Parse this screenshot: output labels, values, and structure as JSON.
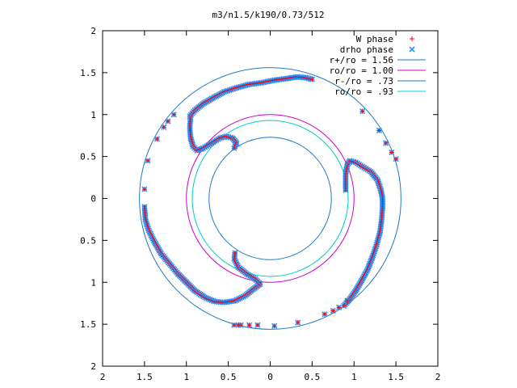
{
  "chart_data": {
    "type": "scatter",
    "title": "m3/n1.5/k190/0.73/512",
    "xlabel": "",
    "ylabel": "",
    "xlim": [
      -2,
      2
    ],
    "ylim": [
      -2,
      2
    ],
    "x_ticks": [
      -2,
      -1.5,
      -1,
      -0.5,
      0,
      0.5,
      1,
      1.5,
      2
    ],
    "y_ticks": [
      -2,
      -1.5,
      -1,
      -0.5,
      0,
      0.5,
      1,
      1.5,
      2
    ],
    "x_tick_labels": [
      "2",
      "1.5",
      "1",
      "0.5",
      "0",
      "0.5",
      "1",
      "1.5",
      "2"
    ],
    "y_tick_labels": [
      "2",
      "1.5",
      "1",
      "0.5",
      "0",
      "0.5",
      "1",
      "1.5",
      "2"
    ],
    "grid": false,
    "legend_position": "top-right",
    "colors": {
      "w_phase": "#ff0000",
      "drho_phase": "#1e90ff",
      "circle_rplus": "#1e78c8",
      "circle_ro": "#cc00cc",
      "circle_rminus": "#1e78c8",
      "circle_ro93": "#00cccc"
    },
    "circles": [
      {
        "name": "r+/ro = 1.56",
        "r": 1.56,
        "color": "#1e78c8"
      },
      {
        "name": "ro/ro = 1.00",
        "r": 1.0,
        "color": "#cc00cc"
      },
      {
        "name": "r-/ro = .73",
        "r": 0.73,
        "color": "#1e78c8"
      },
      {
        "name": "ro/ro = .93",
        "r": 0.93,
        "color": "#00cccc"
      }
    ],
    "series": [
      {
        "name": "W phase",
        "marker": "plus",
        "color": "#ff0000",
        "arms": [
          [
            [
              -0.95,
              0.96
            ],
            [
              -0.96,
              0.85
            ],
            [
              -0.95,
              0.72
            ],
            [
              -0.92,
              0.62
            ],
            [
              -0.87,
              0.57
            ],
            [
              -0.8,
              0.6
            ],
            [
              -0.7,
              0.66
            ],
            [
              -0.6,
              0.72
            ],
            [
              -0.52,
              0.74
            ],
            [
              -0.45,
              0.72
            ],
            [
              -0.4,
              0.66
            ],
            [
              -0.43,
              0.6
            ]
          ],
          [
            [
              -0.96,
              0.98
            ],
            [
              -0.9,
              1.05
            ],
            [
              -0.8,
              1.13
            ],
            [
              -0.68,
              1.2
            ],
            [
              -0.55,
              1.27
            ],
            [
              -0.4,
              1.32
            ],
            [
              -0.25,
              1.36
            ],
            [
              -0.1,
              1.38
            ],
            [
              0.05,
              1.41
            ],
            [
              0.2,
              1.43
            ],
            [
              0.32,
              1.45
            ],
            [
              0.42,
              1.44
            ],
            [
              0.5,
              1.42
            ]
          ],
          [
            [
              0.9,
              0.1
            ],
            [
              0.9,
              0.2
            ],
            [
              0.9,
              0.3
            ],
            [
              0.92,
              0.4
            ],
            [
              0.95,
              0.45
            ],
            [
              1.02,
              0.43
            ],
            [
              1.1,
              0.38
            ],
            [
              1.2,
              0.32
            ],
            [
              1.28,
              0.22
            ],
            [
              1.32,
              0.1
            ],
            [
              1.34,
              0.0
            ],
            [
              1.34,
              -0.1
            ]
          ],
          [
            [
              1.34,
              -0.1
            ],
            [
              1.33,
              -0.25
            ],
            [
              1.31,
              -0.4
            ],
            [
              1.27,
              -0.55
            ],
            [
              1.22,
              -0.7
            ],
            [
              1.16,
              -0.85
            ],
            [
              1.09,
              -0.98
            ],
            [
              1.02,
              -1.1
            ],
            [
              0.95,
              -1.2
            ],
            [
              0.88,
              -1.28
            ]
          ],
          [
            [
              -1.5,
              -0.1
            ],
            [
              -1.49,
              -0.25
            ],
            [
              -1.45,
              -0.38
            ],
            [
              -1.38,
              -0.52
            ],
            [
              -1.3,
              -0.66
            ],
            [
              -1.2,
              -0.78
            ],
            [
              -1.1,
              -0.9
            ],
            [
              -1.0,
              -1.0
            ],
            [
              -0.9,
              -1.1
            ],
            [
              -0.78,
              -1.18
            ],
            [
              -0.66,
              -1.23
            ],
            [
              -0.55,
              -1.24
            ],
            [
              -0.42,
              -1.22
            ],
            [
              -0.3,
              -1.16
            ],
            [
              -0.2,
              -1.08
            ],
            [
              -0.12,
              -1.02
            ]
          ],
          [
            [
              -0.12,
              -1.02
            ],
            [
              -0.18,
              -0.96
            ],
            [
              -0.28,
              -0.9
            ],
            [
              -0.38,
              -0.82
            ],
            [
              -0.43,
              -0.72
            ],
            [
              -0.42,
              -0.65
            ]
          ]
        ],
        "isolated": [
          [
            -1.5,
            0.11
          ],
          [
            -1.46,
            0.45
          ],
          [
            -1.35,
            0.71
          ],
          [
            -1.27,
            0.85
          ],
          [
            -1.22,
            0.92
          ],
          [
            -1.15,
            1.0
          ],
          [
            1.1,
            1.04
          ],
          [
            1.3,
            0.81
          ],
          [
            1.38,
            0.66
          ],
          [
            1.45,
            0.55
          ],
          [
            1.5,
            0.47
          ],
          [
            0.65,
            -1.38
          ],
          [
            0.82,
            -1.3
          ],
          [
            0.33,
            -1.48
          ],
          [
            0.05,
            -1.52
          ],
          [
            -0.15,
            -1.51
          ],
          [
            -0.25,
            -1.51
          ],
          [
            -0.35,
            -1.51
          ],
          [
            -0.38,
            -1.51
          ],
          [
            -0.43,
            -1.51
          ],
          [
            0.75,
            -1.34
          ],
          [
            0.92,
            -1.22
          ]
        ]
      },
      {
        "name": "drho phase",
        "marker": "cross",
        "color": "#1e90ff"
      }
    ]
  }
}
